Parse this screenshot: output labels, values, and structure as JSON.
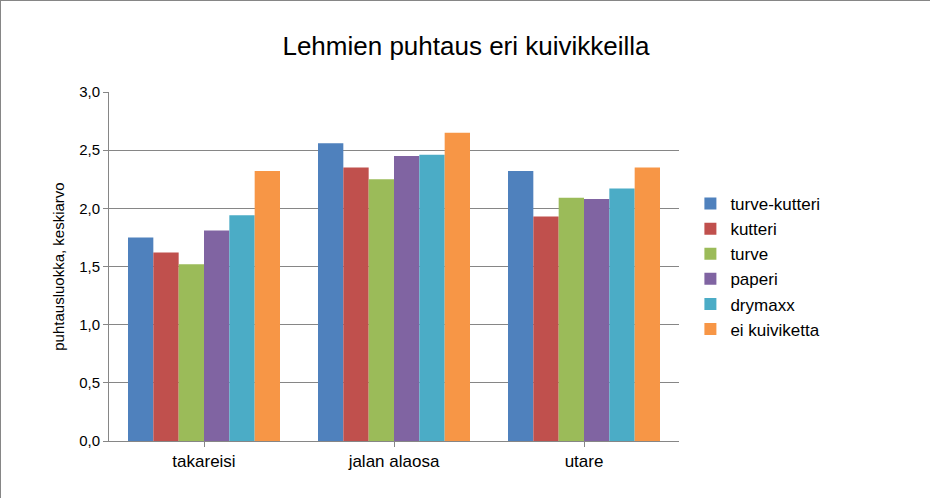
{
  "chart_data": {
    "type": "bar",
    "title": "Lehmien puhtaus eri kuivikkeilla",
    "y_label": "puhtausluokka, keskiarvo",
    "categories": [
      "takareisi",
      "jalan alaosa",
      "utare"
    ],
    "series": [
      {
        "name": "turve-kutteri",
        "color": "#4f81bd",
        "values": [
          1.75,
          2.56,
          2.32
        ]
      },
      {
        "name": "kutteri",
        "color": "#c0504d",
        "values": [
          1.62,
          2.35,
          1.93
        ]
      },
      {
        "name": "turve",
        "color": "#9bbb59",
        "values": [
          1.52,
          2.25,
          2.09
        ]
      },
      {
        "name": "paperi",
        "color": "#8064a2",
        "values": [
          1.81,
          2.45,
          2.08
        ]
      },
      {
        "name": "drymaxx",
        "color": "#4bacc6",
        "values": [
          1.94,
          2.46,
          2.17
        ]
      },
      {
        "name": "ei kuiviketta",
        "color": "#f79646",
        "values": [
          2.32,
          2.65,
          2.35
        ]
      }
    ],
    "ylim": [
      0,
      3
    ],
    "yticks": [
      {
        "value": 0,
        "label": "0,0"
      },
      {
        "value": 0.5,
        "label": "0,5"
      },
      {
        "value": 1,
        "label": "1,0"
      },
      {
        "value": 1.5,
        "label": "1,5"
      },
      {
        "value": 2,
        "label": "2,0"
      },
      {
        "value": 2.5,
        "label": "2,5"
      },
      {
        "value": 3,
        "label": "3,0"
      }
    ],
    "grid": true,
    "legend": "right"
  }
}
